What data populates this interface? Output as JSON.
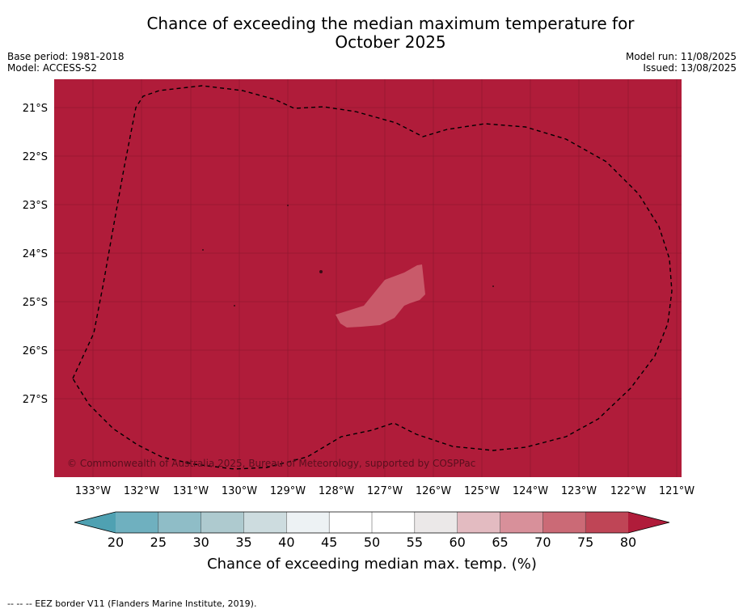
{
  "title": {
    "line1": "Chance of exceeding the median maximum temperature for",
    "line2": "October 2025"
  },
  "meta_left": {
    "base_period": "Base period: 1981-2018",
    "model": "Model: ACCESS-S2"
  },
  "meta_right": {
    "model_run": "Model run: 11/08/2025",
    "issued": "Issued: 13/08/2025"
  },
  "map": {
    "lat_labels": [
      "21°S",
      "22°S",
      "23°S",
      "24°S",
      "25°S",
      "26°S",
      "27°S"
    ],
    "lon_labels": [
      "133°W",
      "132°W",
      "131°W",
      "130°W",
      "129°W",
      "128°W",
      "127°W",
      "126°W",
      "125°W",
      "124°W",
      "123°W",
      "122°W",
      "121°W"
    ],
    "copyright": "© Commonwealth of Australia 2025, Bureau of Meteorology, supported by COSPPac",
    "background_color": "#b01c3a",
    "patch_color": "#c95a6a",
    "eez_border_style": "dashed"
  },
  "colorbar": {
    "ticks": [
      "20",
      "25",
      "30",
      "35",
      "40",
      "45",
      "50",
      "55",
      "60",
      "65",
      "70",
      "75",
      "80"
    ],
    "colors": [
      "#6fb0bf",
      "#8fbdc7",
      "#aecacf",
      "#cddcdf",
      "#edf2f4",
      "#ffffff",
      "#ffffff",
      "#ebe8e8",
      "#e3bbc1",
      "#d8909a",
      "#cb6a76",
      "#bf4556"
    ],
    "under_color": "#4fa1b2",
    "over_color": "#b01c3a",
    "label": "Chance of exceeding median max. temp. (%)"
  },
  "footnote": "--  --  -- EEZ border V11 (Flanders Marine Institute, 2019)."
}
